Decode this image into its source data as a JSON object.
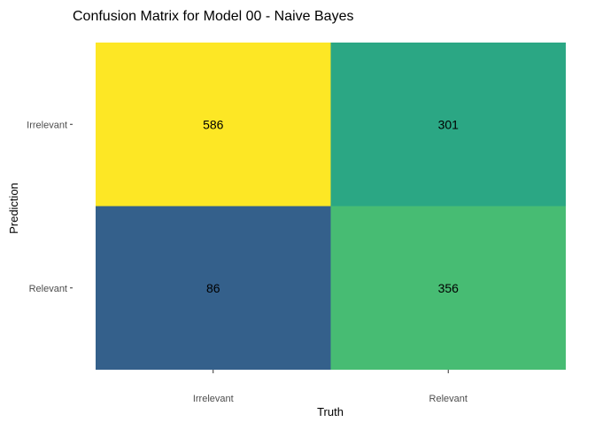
{
  "chart_data": {
    "type": "heatmap",
    "title": "Confusion Matrix for Model 00 - Naive Bayes",
    "xlabel": "Truth",
    "ylabel": "Prediction",
    "x_categories": [
      "Irrelevant",
      "Relevant"
    ],
    "y_categories": [
      "Irrelevant",
      "Relevant"
    ],
    "cells": [
      {
        "truth": "Irrelevant",
        "prediction": "Irrelevant",
        "value": 586,
        "color": "#FDE725"
      },
      {
        "truth": "Relevant",
        "prediction": "Irrelevant",
        "value": 301,
        "color": "#2BA784"
      },
      {
        "truth": "Irrelevant",
        "prediction": "Relevant",
        "value": 86,
        "color": "#34608B"
      },
      {
        "truth": "Relevant",
        "prediction": "Relevant",
        "value": 356,
        "color": "#47BC73"
      }
    ],
    "color_scale": "viridis",
    "grid": false,
    "legend": "none"
  }
}
